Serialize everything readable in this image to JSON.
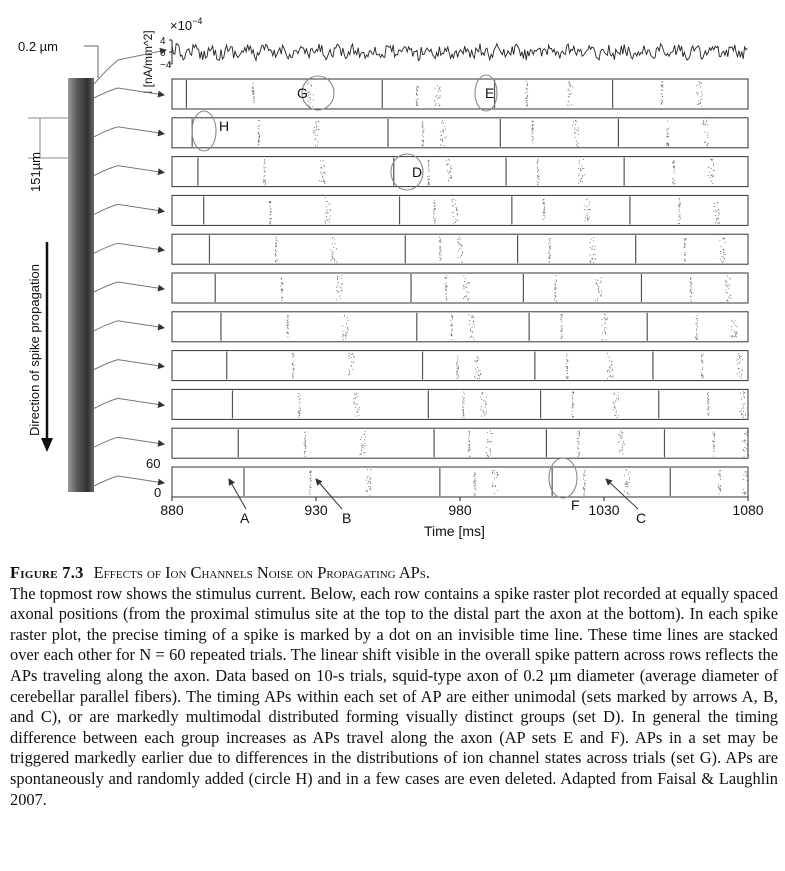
{
  "figure": {
    "diameter_label": "0.2 µm",
    "spacing_label": "151µm",
    "direction_label": "Direction of spike propagation",
    "current_axis_label": "I [nA/mm^2]",
    "current_scale": "×10",
    "current_scale_exp": "−4",
    "current_ticks": [
      "4",
      "0",
      "−4"
    ],
    "trials_top_tick": "60",
    "trials_bottom_tick": "0",
    "x_ticks": [
      "880",
      "930",
      "980",
      "1030",
      "1080"
    ],
    "x_axis_label": "Time [ms]",
    "arrow_labels": [
      "A",
      "B",
      "C"
    ],
    "circle_labels": [
      "G",
      "E",
      "H",
      "D",
      "F"
    ]
  },
  "chart_data": {
    "type": "scatter",
    "description_kind": "spike raster plots, 11 axonal positions, 60 trials each",
    "x_unit": "ms",
    "xlim": [
      880,
      1080
    ],
    "ylim": [
      0,
      60
    ],
    "rows": 11,
    "trials_per_row": 60,
    "current_ylim": [
      -4,
      4
    ],
    "row_spike_times_ms": [
      [
        885,
        908,
        928,
        953,
        965,
        972,
        992,
        1003,
        1018,
        1033,
        1050,
        1063
      ],
      [
        887,
        910,
        930,
        955,
        967,
        974,
        994,
        1005,
        1020,
        1035,
        1052,
        1065
      ],
      [
        889,
        912,
        932,
        957,
        969,
        976,
        996,
        1007,
        1022,
        1037,
        1054,
        1067
      ],
      [
        891,
        914,
        934,
        959,
        971,
        978,
        998,
        1009,
        1024,
        1039,
        1056,
        1069
      ],
      [
        893,
        916,
        936,
        961,
        973,
        980,
        1000,
        1011,
        1026,
        1041,
        1058,
        1071
      ],
      [
        895,
        918,
        938,
        963,
        975,
        982,
        1002,
        1013,
        1028,
        1043,
        1060,
        1073
      ],
      [
        897,
        920,
        940,
        965,
        977,
        984,
        1004,
        1015,
        1030,
        1045,
        1062,
        1075
      ],
      [
        899,
        922,
        942,
        967,
        979,
        986,
        1006,
        1017,
        1032,
        1047,
        1064,
        1077
      ],
      [
        901,
        924,
        944,
        969,
        981,
        988,
        1008,
        1019,
        1034,
        1049,
        1066,
        1078
      ],
      [
        903,
        926,
        946,
        971,
        983,
        990,
        1010,
        1021,
        1036,
        1051,
        1068,
        1079
      ],
      [
        905,
        928,
        948,
        973,
        985,
        992,
        1012,
        1023,
        1038,
        1053,
        1070,
        1079
      ]
    ]
  },
  "caption": {
    "number": "Figure 7.3",
    "title": "Effects of Ion Channels Noise on Propagating APs.",
    "body": "The topmost row shows the stimulus current. Below, each row contains a spike raster plot recorded at equally spaced axonal positions (from the proximal stimulus site at the top to the distal part the axon at the bottom). In each spike raster plot, the precise timing of a spike is marked by a dot on an invisible time line. These time lines are stacked over each other for N = 60 repeated trials. The linear shift visible in the overall spike pattern across rows reflects the APs traveling along the axon. Data based on 10-s trials, squid-type axon of 0.2 µm diameter (average diameter of cerebellar parallel fibers). The timing APs within each set of AP are either unimodal (sets marked by arrows A, B, and C), or are markedly multimodal distributed forming visually distinct groups (set D). In general the timing difference between each group increases as APs travel along the axon (AP sets E and F). APs in a set may be triggered markedly earlier due to differences in the distributions of ion channel states across trials (set G). APs are spontaneously and randomly added (circle H) and in a few cases are even deleted. Adapted from Faisal & Laughlin 2007."
  }
}
